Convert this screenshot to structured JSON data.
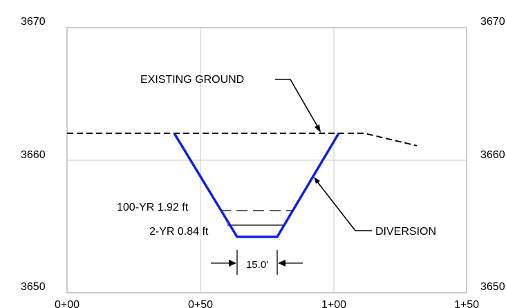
{
  "axes": {
    "y_left_labels": [
      "3670",
      "3660",
      "3650"
    ],
    "y_right_labels": [
      "3670",
      "3660",
      "3650"
    ],
    "x_labels": [
      "0+00",
      "0+50",
      "1+00",
      "1+50"
    ]
  },
  "annotations": {
    "existing_ground": "EXISTING GROUND",
    "diversion": "DIVERSION",
    "wse_100yr": "100-YR 1.92 ft",
    "wse_2yr": "2-YR 0.84 ft",
    "bottom_width": "15.0'"
  },
  "colors": {
    "channel": "#0a21e6",
    "ground": "#000000",
    "grid": "#c8c8c8",
    "frame": "#999999"
  }
}
